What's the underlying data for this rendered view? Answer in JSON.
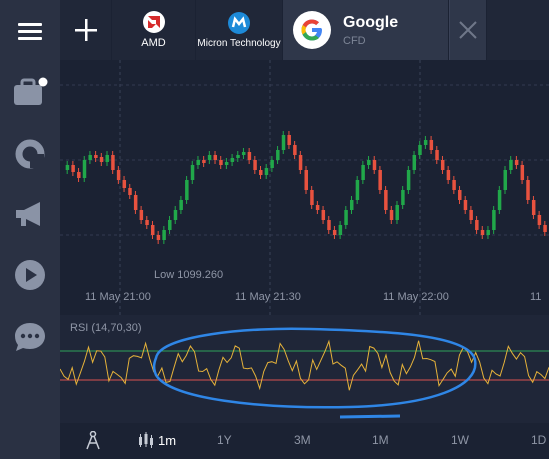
{
  "tabs": {
    "amd": {
      "label": "AMD"
    },
    "micron": {
      "label": "Micron Technology"
    },
    "google": {
      "title": "Google",
      "subtitle": "CFD"
    }
  },
  "chart": {
    "low_label": "Low 1099.260",
    "time_labels": [
      "11 May 21:00",
      "11 May 21:30",
      "11 May 22:00",
      "11"
    ]
  },
  "rsi": {
    "label": "RSI (14,70,30)"
  },
  "timeframes": {
    "current": "1m",
    "options": [
      "1Y",
      "3M",
      "1M",
      "1W",
      "1D"
    ]
  },
  "colors": {
    "up": "#21a84a",
    "down": "#e8523f",
    "rsi_line": "#e5b23a",
    "overbought": "#2fa35a",
    "oversold": "#d9534f",
    "annotation": "#2f86e6"
  }
}
